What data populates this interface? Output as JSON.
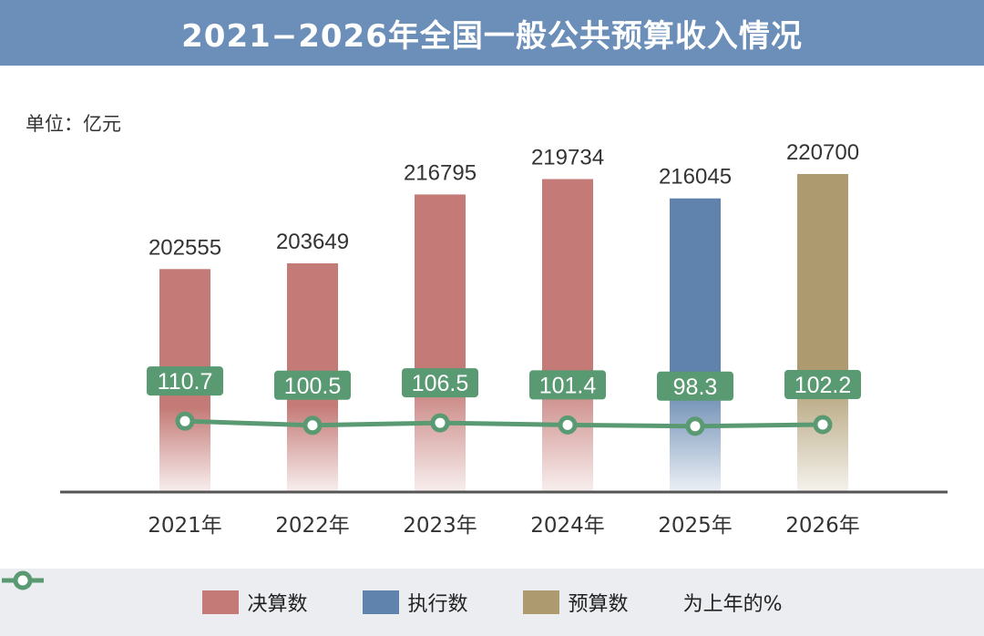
{
  "title": "2021−2026年全国一般公共预算收入情况",
  "unit": "单位：亿元",
  "colors": {
    "header": "#6b8fb8",
    "final": "#c47a76",
    "execution": "#5f83ad",
    "budget": "#ad9a6e",
    "line": "#5a9a72",
    "axis": "#555555"
  },
  "legend": [
    {
      "label": "决算数",
      "key": "final"
    },
    {
      "label": "执行数",
      "key": "execution"
    },
    {
      "label": "预算数",
      "key": "budget"
    },
    {
      "label": "为上年的%",
      "key": "line"
    }
  ],
  "chart_data": {
    "type": "bar",
    "categories": [
      "2021年",
      "2022年",
      "2023年",
      "2024年",
      "2025年",
      "2026年"
    ],
    "series": [
      {
        "name": "决算数",
        "kind": "bar",
        "values": [
          202555,
          203649,
          216795,
          219734,
          216045,
          220700
        ],
        "bar_types": [
          "final",
          "final",
          "final",
          "final",
          "execution",
          "budget"
        ]
      },
      {
        "name": "为上年的%",
        "kind": "line",
        "values": [
          110.7,
          100.5,
          106.5,
          101.4,
          98.3,
          102.2
        ]
      }
    ],
    "bar_value_labels": [
      "202555",
      "203649",
      "216795",
      "219734",
      "216045",
      "220700"
    ],
    "line_value_labels": [
      "110.7",
      "100.5",
      "106.5",
      "101.4",
      "98.3",
      "102.2"
    ],
    "ylabel": "单位：亿元"
  }
}
